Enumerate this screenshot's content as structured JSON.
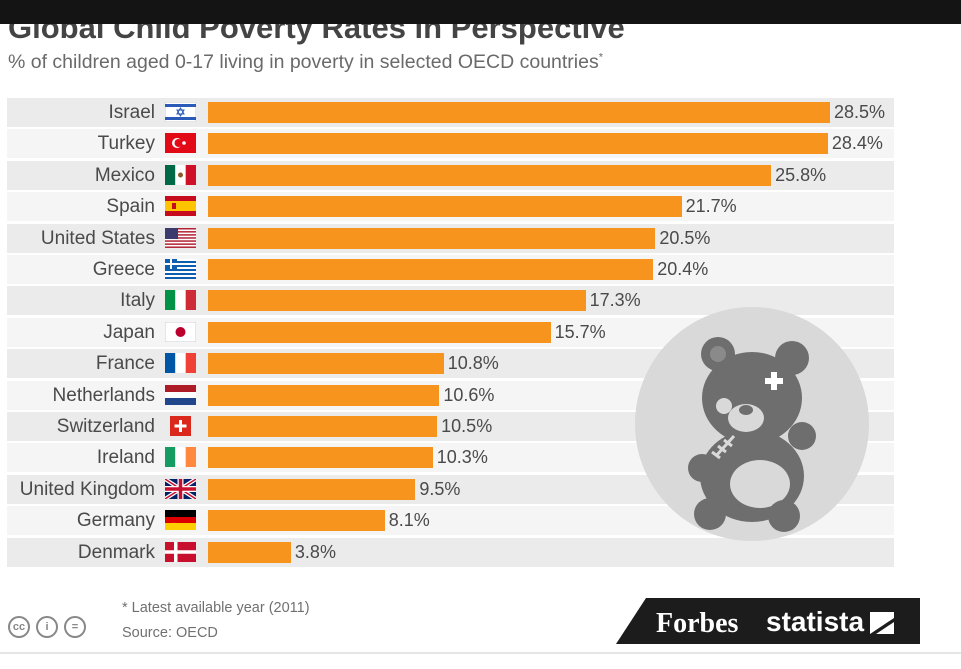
{
  "chart_data": {
    "type": "bar",
    "orientation": "horizontal",
    "title": "Global Child Poverty Rates in Perspective",
    "subtitle": "% of children aged 0-17 living in poverty in selected OECD countries",
    "subtitle_mark": "*",
    "categories": [
      "Israel",
      "Turkey",
      "Mexico",
      "Spain",
      "United States",
      "Greece",
      "Italy",
      "Japan",
      "France",
      "Netherlands",
      "Switzerland",
      "Ireland",
      "United Kingdom",
      "Germany",
      "Denmark"
    ],
    "values": [
      28.5,
      28.4,
      25.8,
      21.7,
      20.5,
      20.4,
      17.3,
      15.7,
      10.8,
      10.6,
      10.5,
      10.3,
      9.5,
      8.1,
      3.8
    ],
    "labels": [
      "28.5%",
      "28.4%",
      "25.8%",
      "21.7%",
      "20.5%",
      "20.4%",
      "17.3%",
      "15.7%",
      "10.8%",
      "10.6%",
      "10.5%",
      "10.3%",
      "9.5%",
      "8.1%",
      "3.8%"
    ],
    "xlim": [
      0,
      28.5
    ],
    "bar_color": "#f7941d",
    "grid": false
  },
  "footer": {
    "note": "* Latest available year (2011)",
    "source": "Source: OECD",
    "brand_forbes": "Forbes",
    "brand_statista": "statista"
  },
  "colors": {
    "bar": "#f7941d",
    "band_odd": "#ebebeb",
    "band_even": "#f5f5f5",
    "text": "#4a4a4a"
  }
}
